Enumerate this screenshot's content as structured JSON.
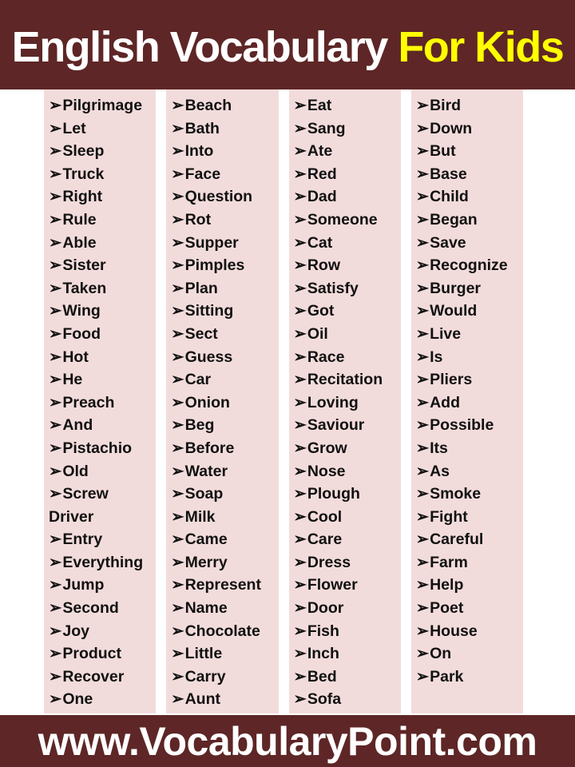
{
  "title": {
    "main": "English Vocabulary ",
    "highlight": "For Kids"
  },
  "bullet": "➢",
  "footer": {
    "url": "www.VocabularyPoint.com"
  },
  "colors": {
    "background_maroon": "#5E2626",
    "column_pink": "#F2DCDB",
    "page_white": "#FFFFFF",
    "title_main": "#FFFFFF",
    "title_highlight": "#FFFF00",
    "word_text": "#111111",
    "footer_text": "#FFFFFF"
  },
  "columns": [
    {
      "words": [
        "Pilgrimage",
        "Let",
        "Sleep",
        "Truck",
        "Right",
        "Rule",
        "Able",
        "Sister",
        "Taken",
        "Wing",
        "Food",
        "Hot",
        "He",
        "Preach",
        "And",
        "Pistachio",
        "Old",
        "Screw Driver",
        "Entry",
        "Everything",
        "Jump",
        "Second",
        "Joy",
        "Product",
        "Recover",
        "One"
      ]
    },
    {
      "words": [
        "Beach",
        "Bath",
        "Into",
        "Face",
        "Question",
        "Rot",
        "Supper",
        "Pimples",
        "Plan",
        "Sitting",
        "Sect",
        "Guess",
        "Car",
        "Onion",
        "Beg",
        "Before",
        "Water",
        "Soap",
        "Milk",
        "Came",
        "Merry",
        "Represent",
        "Name",
        "Chocolate",
        "Little",
        "Carry",
        "Aunt"
      ]
    },
    {
      "words": [
        "Eat",
        "Sang",
        "Ate",
        "Red",
        "Dad",
        "Someone",
        "Cat",
        "Row",
        "Satisfy",
        "Got",
        "Oil",
        "Race",
        "Recitation",
        "Loving",
        "Saviour",
        "Grow",
        "Nose",
        "Plough",
        "Cool",
        "Care",
        "Dress",
        "Flower",
        "Door",
        "Fish",
        "Inch",
        "Bed",
        "Sofa"
      ]
    },
    {
      "words": [
        "Bird",
        "Down",
        "But",
        "Base",
        "Child",
        "Began",
        "Save",
        "Recognize",
        "Burger",
        "Would",
        "Live",
        "Is",
        "Pliers",
        "Add",
        "Possible",
        "Its",
        "As",
        "Smoke",
        "Fight",
        "Careful",
        "Farm",
        "Help",
        "Poet",
        "House",
        "On",
        "Park"
      ]
    }
  ]
}
